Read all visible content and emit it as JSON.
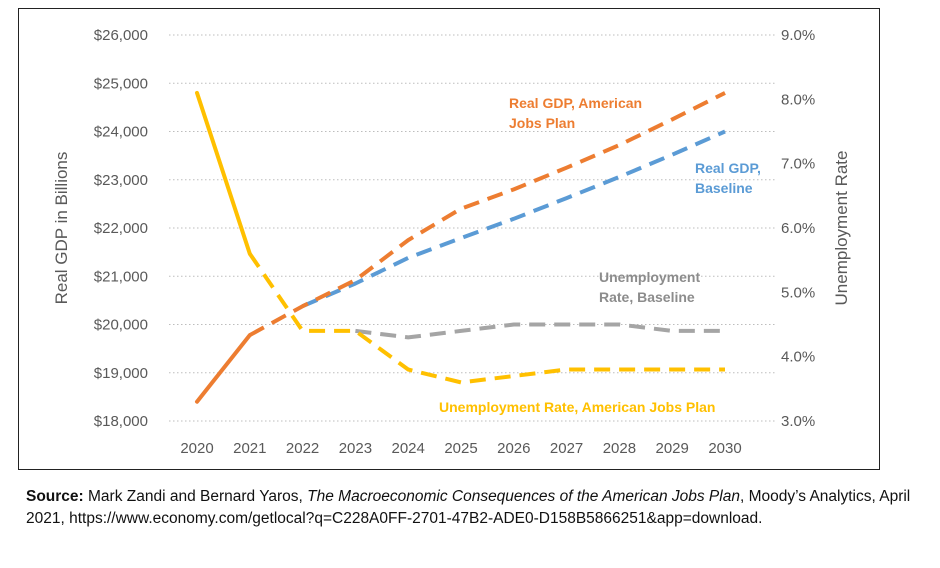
{
  "chart_data": {
    "type": "line",
    "categories": [
      "2020",
      "2021",
      "2022",
      "2023",
      "2024",
      "2025",
      "2026",
      "2027",
      "2028",
      "2029",
      "2030"
    ],
    "left_axis": {
      "label": "Real GDP in Billions",
      "ticks": [
        "$18,000",
        "$19,000",
        "$20,000",
        "$21,000",
        "$22,000",
        "$23,000",
        "$24,000",
        "$25,000",
        "$26,000"
      ],
      "range": [
        18000,
        26000
      ]
    },
    "right_axis": {
      "label": "Unemployment Rate",
      "ticks": [
        "3.0%",
        "4.0%",
        "5.0%",
        "6.0%",
        "7.0%",
        "8.0%",
        "9.0%"
      ],
      "range": [
        3.0,
        9.0
      ]
    },
    "gridlines": true,
    "series": [
      {
        "name": "Real GDP, American Jobs Plan",
        "axis": "left",
        "color": "#ED7D31",
        "values": [
          18400,
          19780,
          20380,
          20920,
          21750,
          22400,
          22800,
          23250,
          23720,
          24250,
          24800
        ]
      },
      {
        "name": "Real GDP, Baseline",
        "axis": "left",
        "color": "#5B9BD5",
        "values": [
          null,
          null,
          20380,
          20850,
          21380,
          21790,
          22190,
          22620,
          23060,
          23520,
          24000
        ]
      },
      {
        "name": "Unemployment Rate, Baseline",
        "axis": "right",
        "color": "#A5A5A5",
        "values": [
          null,
          null,
          null,
          4.4,
          4.3,
          4.4,
          4.5,
          4.5,
          4.5,
          4.4,
          4.4
        ]
      },
      {
        "name": "Unemployment Rate, American Jobs Plan",
        "axis": "right",
        "color": "#FFC000",
        "values": [
          8.1,
          5.6,
          4.4,
          4.4,
          3.8,
          3.6,
          3.7,
          3.8,
          3.8,
          3.8,
          3.8
        ]
      }
    ],
    "annotations": [
      {
        "lines": [
          "Real GDP, American",
          "Jobs Plan"
        ],
        "color": "#ED7D31"
      },
      {
        "lines": [
          "Real GDP,",
          "Baseline"
        ],
        "color": "#5B9BD5"
      },
      {
        "lines": [
          "Unemployment",
          "Rate, Baseline"
        ],
        "color": "#8C8C8C"
      },
      {
        "lines": [
          "Unemployment Rate, American Jobs Plan"
        ],
        "color": "#FFC000"
      }
    ]
  },
  "source": {
    "label": "Source:",
    "authors": " Mark Zandi and Bernard Yaros, ",
    "title": "The Macroeconomic Consequences of the American Jobs Plan",
    "rest": ", Moody’s Analytics, April 2021, https://www.economy.com/getlocal?q=C228A0FF-2701-47B2-ADE0-D158B5866251&app=download."
  }
}
